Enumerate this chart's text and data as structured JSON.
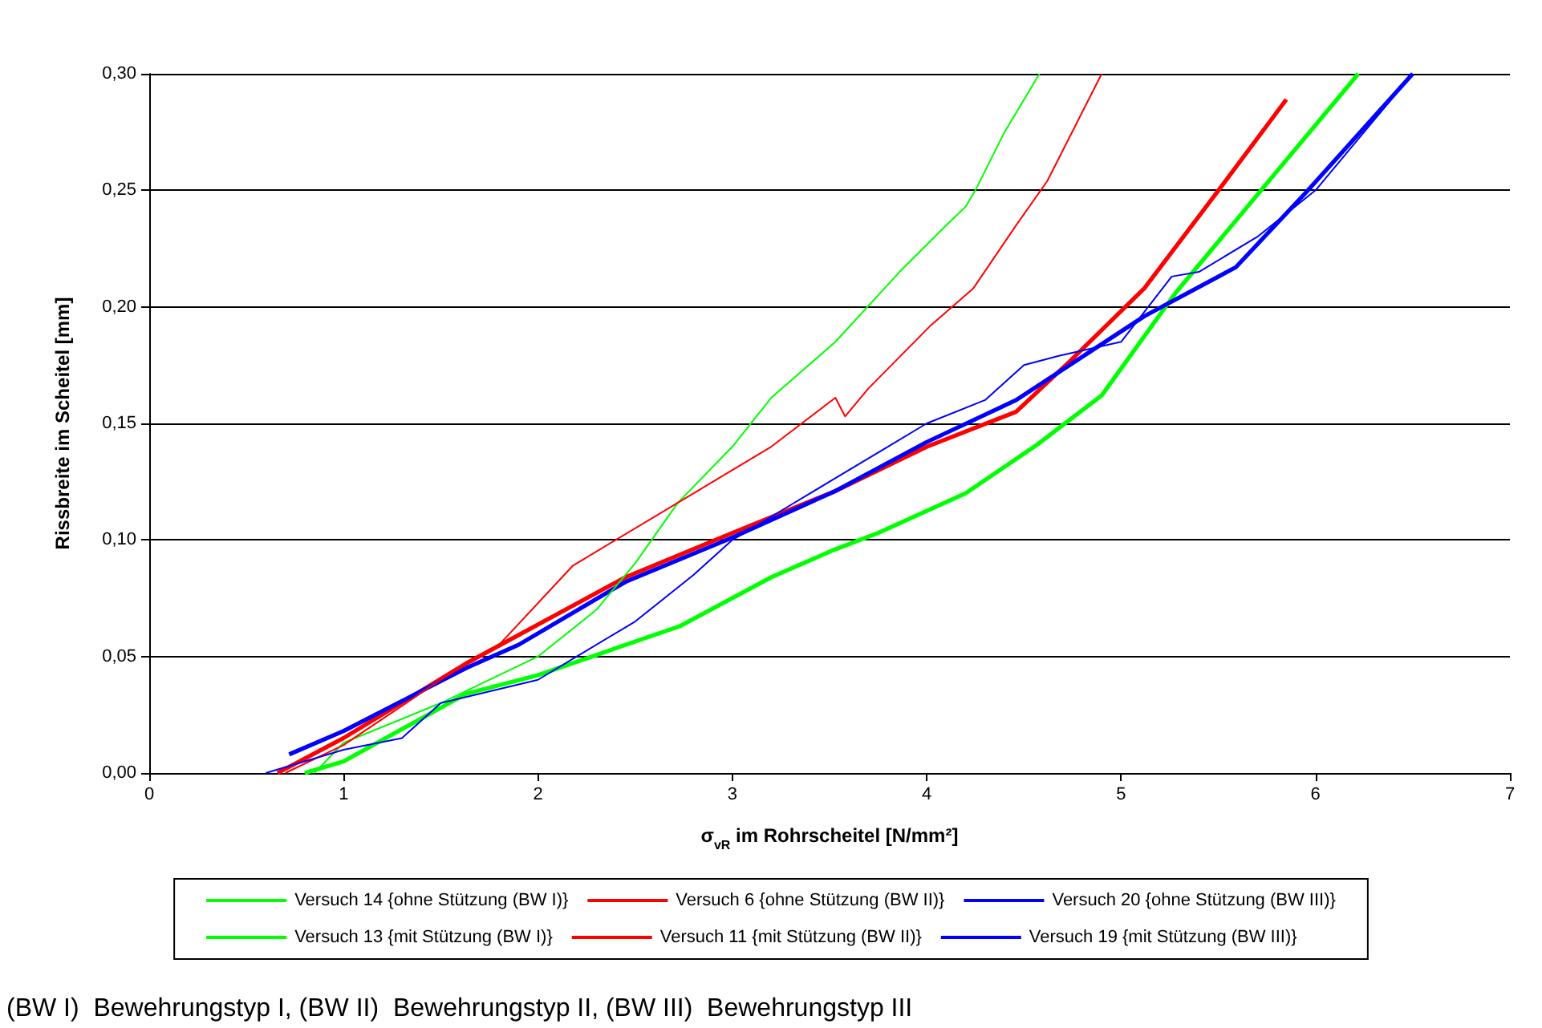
{
  "chart_data": {
    "type": "line",
    "xlabel": "σ$_{vR}$ im Rohrscheitel [N/mm²]",
    "ylabel": "Rissbreite im Scheitel [mm]",
    "annotations": [
      "(BW I)  Bewehrungstyp I, (BW II)  Bewehrungstyp II, (BW III)  Bewehrungstyp III"
    ],
    "xlim": [
      0,
      7
    ],
    "xticks": [
      0,
      1,
      2,
      3,
      4,
      5,
      6,
      7
    ],
    "ylim": [
      0,
      0.3
    ],
    "yticks": [
      {
        "value": 0,
        "label": "0,00"
      },
      {
        "value": 0.05,
        "label": "0,05"
      },
      {
        "value": 0.1,
        "label": "0,10"
      },
      {
        "value": 0.15,
        "label": "0,15"
      },
      {
        "value": 0.2,
        "label": "0,20"
      },
      {
        "value": 0.25,
        "label": "0,25"
      },
      {
        "value": 0.3,
        "label": "0,30"
      }
    ],
    "grid": "y",
    "legend": "bottom",
    "marker": "none",
    "line_style": "solid",
    "series": [
      {
        "name": "Versuch 14 {ohne Stützung (BW I)}",
        "color": "#00ff00",
        "x": [
          0.85,
          1,
          1.5,
          2,
          2.3,
          2.5,
          2.72,
          3,
          3.2,
          3.53,
          3.86,
          4.1,
          4.2,
          4.25,
          4.4,
          4.58
        ],
        "values": [
          0,
          0.013,
          0.03,
          0.05,
          0.07,
          0.09,
          0.116,
          0.14,
          0.161,
          0.185,
          0.215,
          0.235,
          0.243,
          0.25,
          0.275,
          0.3
        ]
      },
      {
        "name": "Versuch 6 {ohne Stützung (BW II)}",
        "color": "#ff0000",
        "x": [
          0.7,
          1,
          1.5,
          1.8,
          2.18,
          2.72,
          3.2,
          3.53,
          3.58,
          3.7,
          4.02,
          4.24,
          4.46,
          4.62,
          4.9
        ],
        "values": [
          0,
          0.012,
          0.04,
          0.055,
          0.089,
          0.116,
          0.14,
          0.161,
          0.153,
          0.165,
          0.192,
          0.208,
          0.235,
          0.254,
          0.3
        ]
      },
      {
        "name": "Versuch 20 {ohne Stützung (BW III)}",
        "color": "#0000ff",
        "x": [
          0.6,
          1,
          1.3,
          1.5,
          2,
          2.2,
          2.5,
          2.8,
          3,
          3.3,
          3.5,
          3.8,
          4,
          4.3,
          4.5,
          4.68,
          5,
          5.26,
          5.4,
          5.7,
          6,
          6.3,
          6.5
        ],
        "values": [
          0,
          0.01,
          0.015,
          0.03,
          0.04,
          0.05,
          0.065,
          0.085,
          0.1,
          0.115,
          0.125,
          0.14,
          0.15,
          0.16,
          0.175,
          0.179,
          0.185,
          0.213,
          0.215,
          0.23,
          0.25,
          0.28,
          0.3
        ]
      },
      {
        "name": "Versuch 13 {mit Stützung (BW I)}",
        "color": "#00ff00",
        "x": [
          0.8,
          1,
          1.63,
          2,
          2.73,
          3.2,
          3.53,
          3.75,
          4.2,
          4.57,
          4.9,
          5.28,
          5.76,
          6.22
        ],
        "values": [
          0,
          0.005,
          0.034,
          0.042,
          0.063,
          0.084,
          0.096,
          0.103,
          0.12,
          0.141,
          0.162,
          0.206,
          0.254,
          0.3
        ]
      },
      {
        "name": "Versuch 11 {mit Stützung (BW II)}",
        "color": "#ff0000",
        "x": [
          0.66,
          1,
          1.63,
          2.45,
          3,
          3.53,
          4,
          4.46,
          4.74,
          5.12,
          5.51,
          5.85
        ],
        "values": [
          0,
          0.015,
          0.047,
          0.084,
          0.103,
          0.121,
          0.14,
          0.155,
          0.177,
          0.208,
          0.251,
          0.289
        ]
      },
      {
        "name": "Versuch 19 {mit Stützung (BW III)}",
        "color": "#0000ff",
        "x": [
          0.72,
          1,
          1.63,
          1.9,
          2.45,
          3,
          3.53,
          4,
          4.46,
          5.12,
          5.59,
          5.95,
          6.5
        ],
        "values": [
          0.008,
          0.018,
          0.045,
          0.055,
          0.082,
          0.101,
          0.121,
          0.142,
          0.16,
          0.196,
          0.217,
          0.249,
          0.3
        ]
      }
    ]
  }
}
